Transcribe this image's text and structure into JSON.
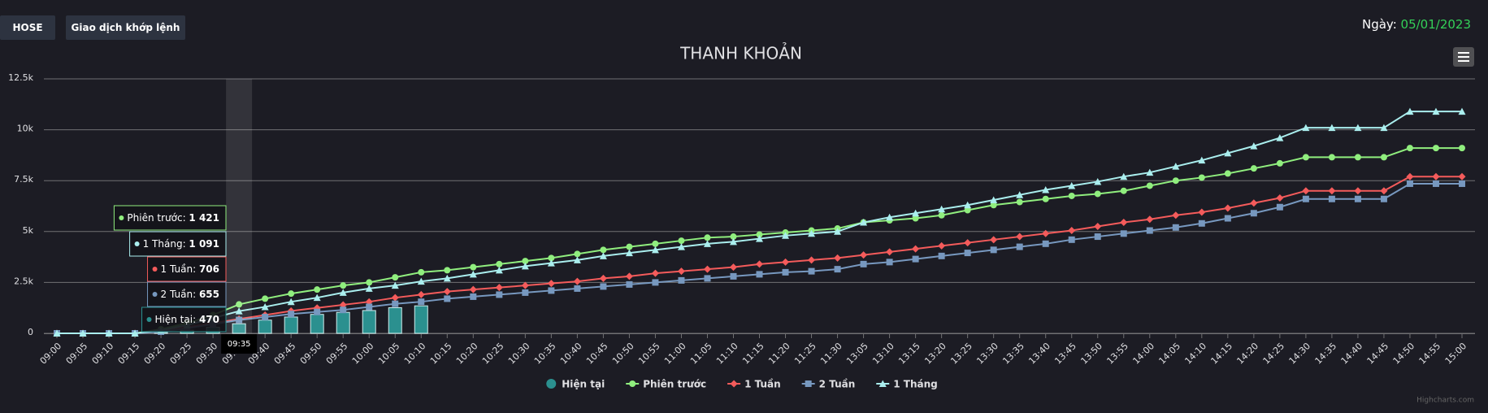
{
  "header": {
    "exchange": "HOSE",
    "mode": "Giao dịch khớp lệnh",
    "date_label": "Ngày:",
    "date": "05/01/2023"
  },
  "credits": "Highcharts.com",
  "chart_data": {
    "type": "line",
    "title": "THANH KHOẢN",
    "categories": [
      "09:00",
      "09:05",
      "09:10",
      "09:15",
      "09:20",
      "09:25",
      "09:30",
      "09:35",
      "09:40",
      "09:45",
      "09:50",
      "09:55",
      "10:00",
      "10:05",
      "10:10",
      "10:15",
      "10:20",
      "10:25",
      "10:30",
      "10:35",
      "10:40",
      "10:45",
      "10:50",
      "10:55",
      "11:00",
      "11:05",
      "11:10",
      "11:15",
      "11:20",
      "11:25",
      "11:30",
      "13:05",
      "13:10",
      "13:15",
      "13:20",
      "13:25",
      "13:30",
      "13:35",
      "13:40",
      "13:45",
      "13:50",
      "13:55",
      "14:00",
      "14:05",
      "14:10",
      "14:15",
      "14:20",
      "14:25",
      "14:30",
      "14:35",
      "14:40",
      "14:45",
      "14:50",
      "14:55",
      "15:00"
    ],
    "series": [
      {
        "name": "Hiện tại",
        "type": "column",
        "color": "#2b908f",
        "marker": "circle",
        "values": [
          0,
          0,
          0,
          0,
          50,
          150,
          300,
          470,
          650,
          800,
          930,
          1030,
          1120,
          1260,
          1350,
          null,
          null,
          null,
          null,
          null,
          null,
          null,
          null,
          null,
          null,
          null,
          null,
          null,
          null,
          null,
          null,
          null,
          null,
          null,
          null,
          null,
          null,
          null,
          null,
          null,
          null,
          null,
          null,
          null,
          null,
          null,
          null,
          null,
          null,
          null,
          null,
          null,
          null,
          null,
          null
        ]
      },
      {
        "name": "Phiên trước",
        "type": "line",
        "color": "#90ee7e",
        "marker": "circle",
        "values": [
          0,
          0,
          0,
          0,
          200,
          500,
          900,
          1421,
          1700,
          1950,
          2150,
          2350,
          2500,
          2750,
          3000,
          3100,
          3250,
          3400,
          3550,
          3700,
          3900,
          4100,
          4250,
          4400,
          4550,
          4700,
          4750,
          4850,
          4950,
          5050,
          5150,
          5450,
          5550,
          5650,
          5800,
          6050,
          6300,
          6450,
          6600,
          6750,
          6850,
          7000,
          7250,
          7500,
          7650,
          7850,
          8100,
          8350,
          8650,
          8650,
          8650,
          8650,
          9100,
          9100,
          9100
        ]
      },
      {
        "name": "1 Tuần",
        "type": "line",
        "color": "#f45b5b",
        "marker": "diamond",
        "values": [
          0,
          0,
          0,
          0,
          100,
          300,
          500,
          706,
          900,
          1100,
          1250,
          1400,
          1550,
          1750,
          1900,
          2050,
          2150,
          2250,
          2350,
          2450,
          2550,
          2700,
          2800,
          2950,
          3050,
          3150,
          3250,
          3400,
          3500,
          3600,
          3700,
          3850,
          4000,
          4150,
          4300,
          4450,
          4600,
          4750,
          4900,
          5050,
          5250,
          5450,
          5600,
          5800,
          5950,
          6150,
          6400,
          6650,
          7000,
          7000,
          7000,
          7000,
          7700,
          7700,
          7700
        ]
      },
      {
        "name": "2 Tuần",
        "type": "line",
        "color": "#7798bf",
        "marker": "square",
        "values": [
          0,
          0,
          0,
          0,
          80,
          250,
          450,
          655,
          800,
          950,
          1050,
          1150,
          1300,
          1450,
          1550,
          1700,
          1800,
          1900,
          2000,
          2100,
          2200,
          2300,
          2400,
          2500,
          2600,
          2700,
          2800,
          2900,
          3000,
          3050,
          3150,
          3400,
          3500,
          3650,
          3800,
          3950,
          4100,
          4250,
          4400,
          4600,
          4750,
          4900,
          5050,
          5200,
          5400,
          5650,
          5900,
          6200,
          6600,
          6600,
          6600,
          6600,
          7350,
          7350,
          7350
        ]
      },
      {
        "name": "1 Tháng",
        "type": "line",
        "color": "#aaeeee",
        "marker": "triangle",
        "values": [
          0,
          0,
          0,
          0,
          150,
          400,
          750,
          1091,
          1300,
          1550,
          1750,
          2000,
          2200,
          2350,
          2550,
          2700,
          2900,
          3100,
          3300,
          3450,
          3600,
          3800,
          3950,
          4100,
          4250,
          4400,
          4500,
          4650,
          4800,
          4900,
          5000,
          5450,
          5700,
          5900,
          6100,
          6300,
          6550,
          6800,
          7050,
          7250,
          7450,
          7700,
          7900,
          8200,
          8500,
          8850,
          9200,
          9600,
          10100,
          10100,
          10100,
          10100,
          10900,
          10900,
          10900
        ]
      }
    ],
    "ylim": [
      0,
      12500
    ],
    "yticks": [
      0,
      {
        "value": 2500,
        "label": "2.5k"
      },
      {
        "value": 5000,
        "label": "5k"
      },
      {
        "value": 7500,
        "label": "7.5k"
      },
      {
        "value": 10000,
        "label": "10k"
      },
      {
        "value": 12500,
        "label": "12.5k"
      }
    ],
    "grid": true,
    "legend": "bottom",
    "tooltip": {
      "labels": [
        "470",
        "1 421",
        "706",
        "655",
        "1 091"
      ]
    }
  }
}
